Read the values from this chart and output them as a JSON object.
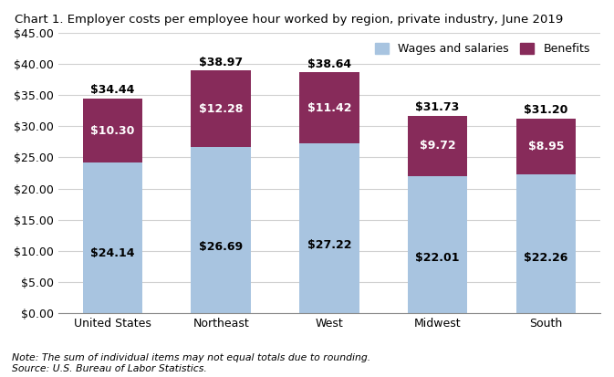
{
  "title": "Chart 1. Employer costs per employee hour worked by region, private industry, June 2019",
  "categories": [
    "United States",
    "Northeast",
    "West",
    "Midwest",
    "South"
  ],
  "wages": [
    24.14,
    26.69,
    27.22,
    22.01,
    22.26
  ],
  "benefits": [
    10.3,
    12.28,
    11.42,
    9.72,
    8.95
  ],
  "totals": [
    34.44,
    38.97,
    38.64,
    31.73,
    31.2
  ],
  "wages_color": "#A8C4E0",
  "benefits_color": "#872B5A",
  "wages_label": "Wages and salaries",
  "benefits_label": "Benefits",
  "ylim": [
    0,
    45
  ],
  "yticks": [
    0,
    5,
    10,
    15,
    20,
    25,
    30,
    35,
    40,
    45
  ],
  "note": "Note: The sum of individual items may not equal totals due to rounding.\nSource: U.S. Bureau of Labor Statistics.",
  "title_fontsize": 9.5,
  "tick_fontsize": 9,
  "label_fontsize": 9,
  "bar_width": 0.55,
  "background_color": "#ffffff",
  "grid_color": "#d0d0d0"
}
